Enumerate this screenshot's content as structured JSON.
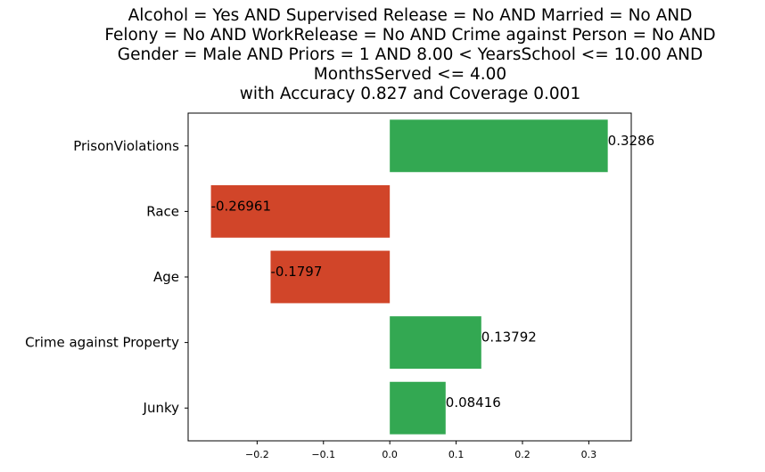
{
  "chart_data": {
    "type": "bar",
    "orientation": "horizontal",
    "title_lines": [
      "Alcohol = Yes AND Supervised Release = No AND Married = No AND",
      "Felony = No AND WorkRelease = No AND Crime against Person = No AND",
      "Gender = Male AND Priors = 1 AND 8.00 < YearsSchool <= 10.00 AND",
      "MonthsServed <= 4.00",
      "with Accuracy 0.827 and Coverage 0.001"
    ],
    "categories": [
      "PrisonViolations",
      "Race",
      "Age",
      "Crime against Property",
      "Junky"
    ],
    "values": [
      0.3286,
      -0.26961,
      -0.1797,
      0.13792,
      0.08416
    ],
    "value_labels": [
      "0.3286",
      "-0.26961",
      "-0.1797",
      "0.13792",
      "0.08416"
    ],
    "xticks": [
      -0.2,
      -0.1,
      0.0,
      0.1,
      0.2,
      0.3
    ],
    "xtick_labels": [
      "−0.2",
      "−0.1",
      "0.0",
      "0.1",
      "0.2",
      "0.3"
    ],
    "xlim": [
      -0.304,
      0.364
    ],
    "colors": {
      "positive": "#33a852",
      "negative": "#d14529"
    },
    "grid": false,
    "legend": false
  }
}
